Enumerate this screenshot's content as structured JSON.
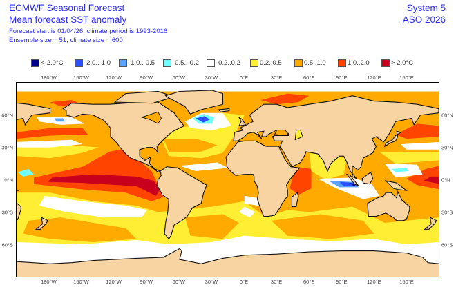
{
  "header": {
    "title": "ECMWF Seasonal Forecast",
    "subtitle": "Mean forecast SST anomaly",
    "info1": "Forecast start is 01/04/26, climate period is 1993-2016",
    "info2": "Ensemble size = 51, climate size = 600",
    "system": "System 5",
    "period": "ASO 2026"
  },
  "legend": [
    {
      "label": "<-2.0°C",
      "color": "#00008f"
    },
    {
      "label": "-2.0..-1.0",
      "color": "#2a50ff"
    },
    {
      "label": "-1.0..-0.5",
      "color": "#5aa2ff"
    },
    {
      "label": "-0.5..-0.2",
      "color": "#70ffff"
    },
    {
      "label": "-0.2..0.2",
      "color": "#ffffff"
    },
    {
      "label": "0.2..0.5",
      "color": "#ffee33"
    },
    {
      "label": "0.5..1.0",
      "color": "#ffaa00"
    },
    {
      "label": "1.0..2.0",
      "color": "#ff4400"
    },
    {
      "label": "> 2.0°C",
      "color": "#c8001e"
    }
  ],
  "map": {
    "land_color": "#f7d4a2",
    "lon_labels": [
      "180°W",
      "150°W",
      "120°W",
      "90°W",
      "60°W",
      "30°W",
      "0°E",
      "30°E",
      "60°E",
      "90°E",
      "120°E",
      "150°E"
    ],
    "lat_labels": [
      "60°N",
      "30°N",
      "0°N",
      "30°S",
      "60°S"
    ]
  }
}
